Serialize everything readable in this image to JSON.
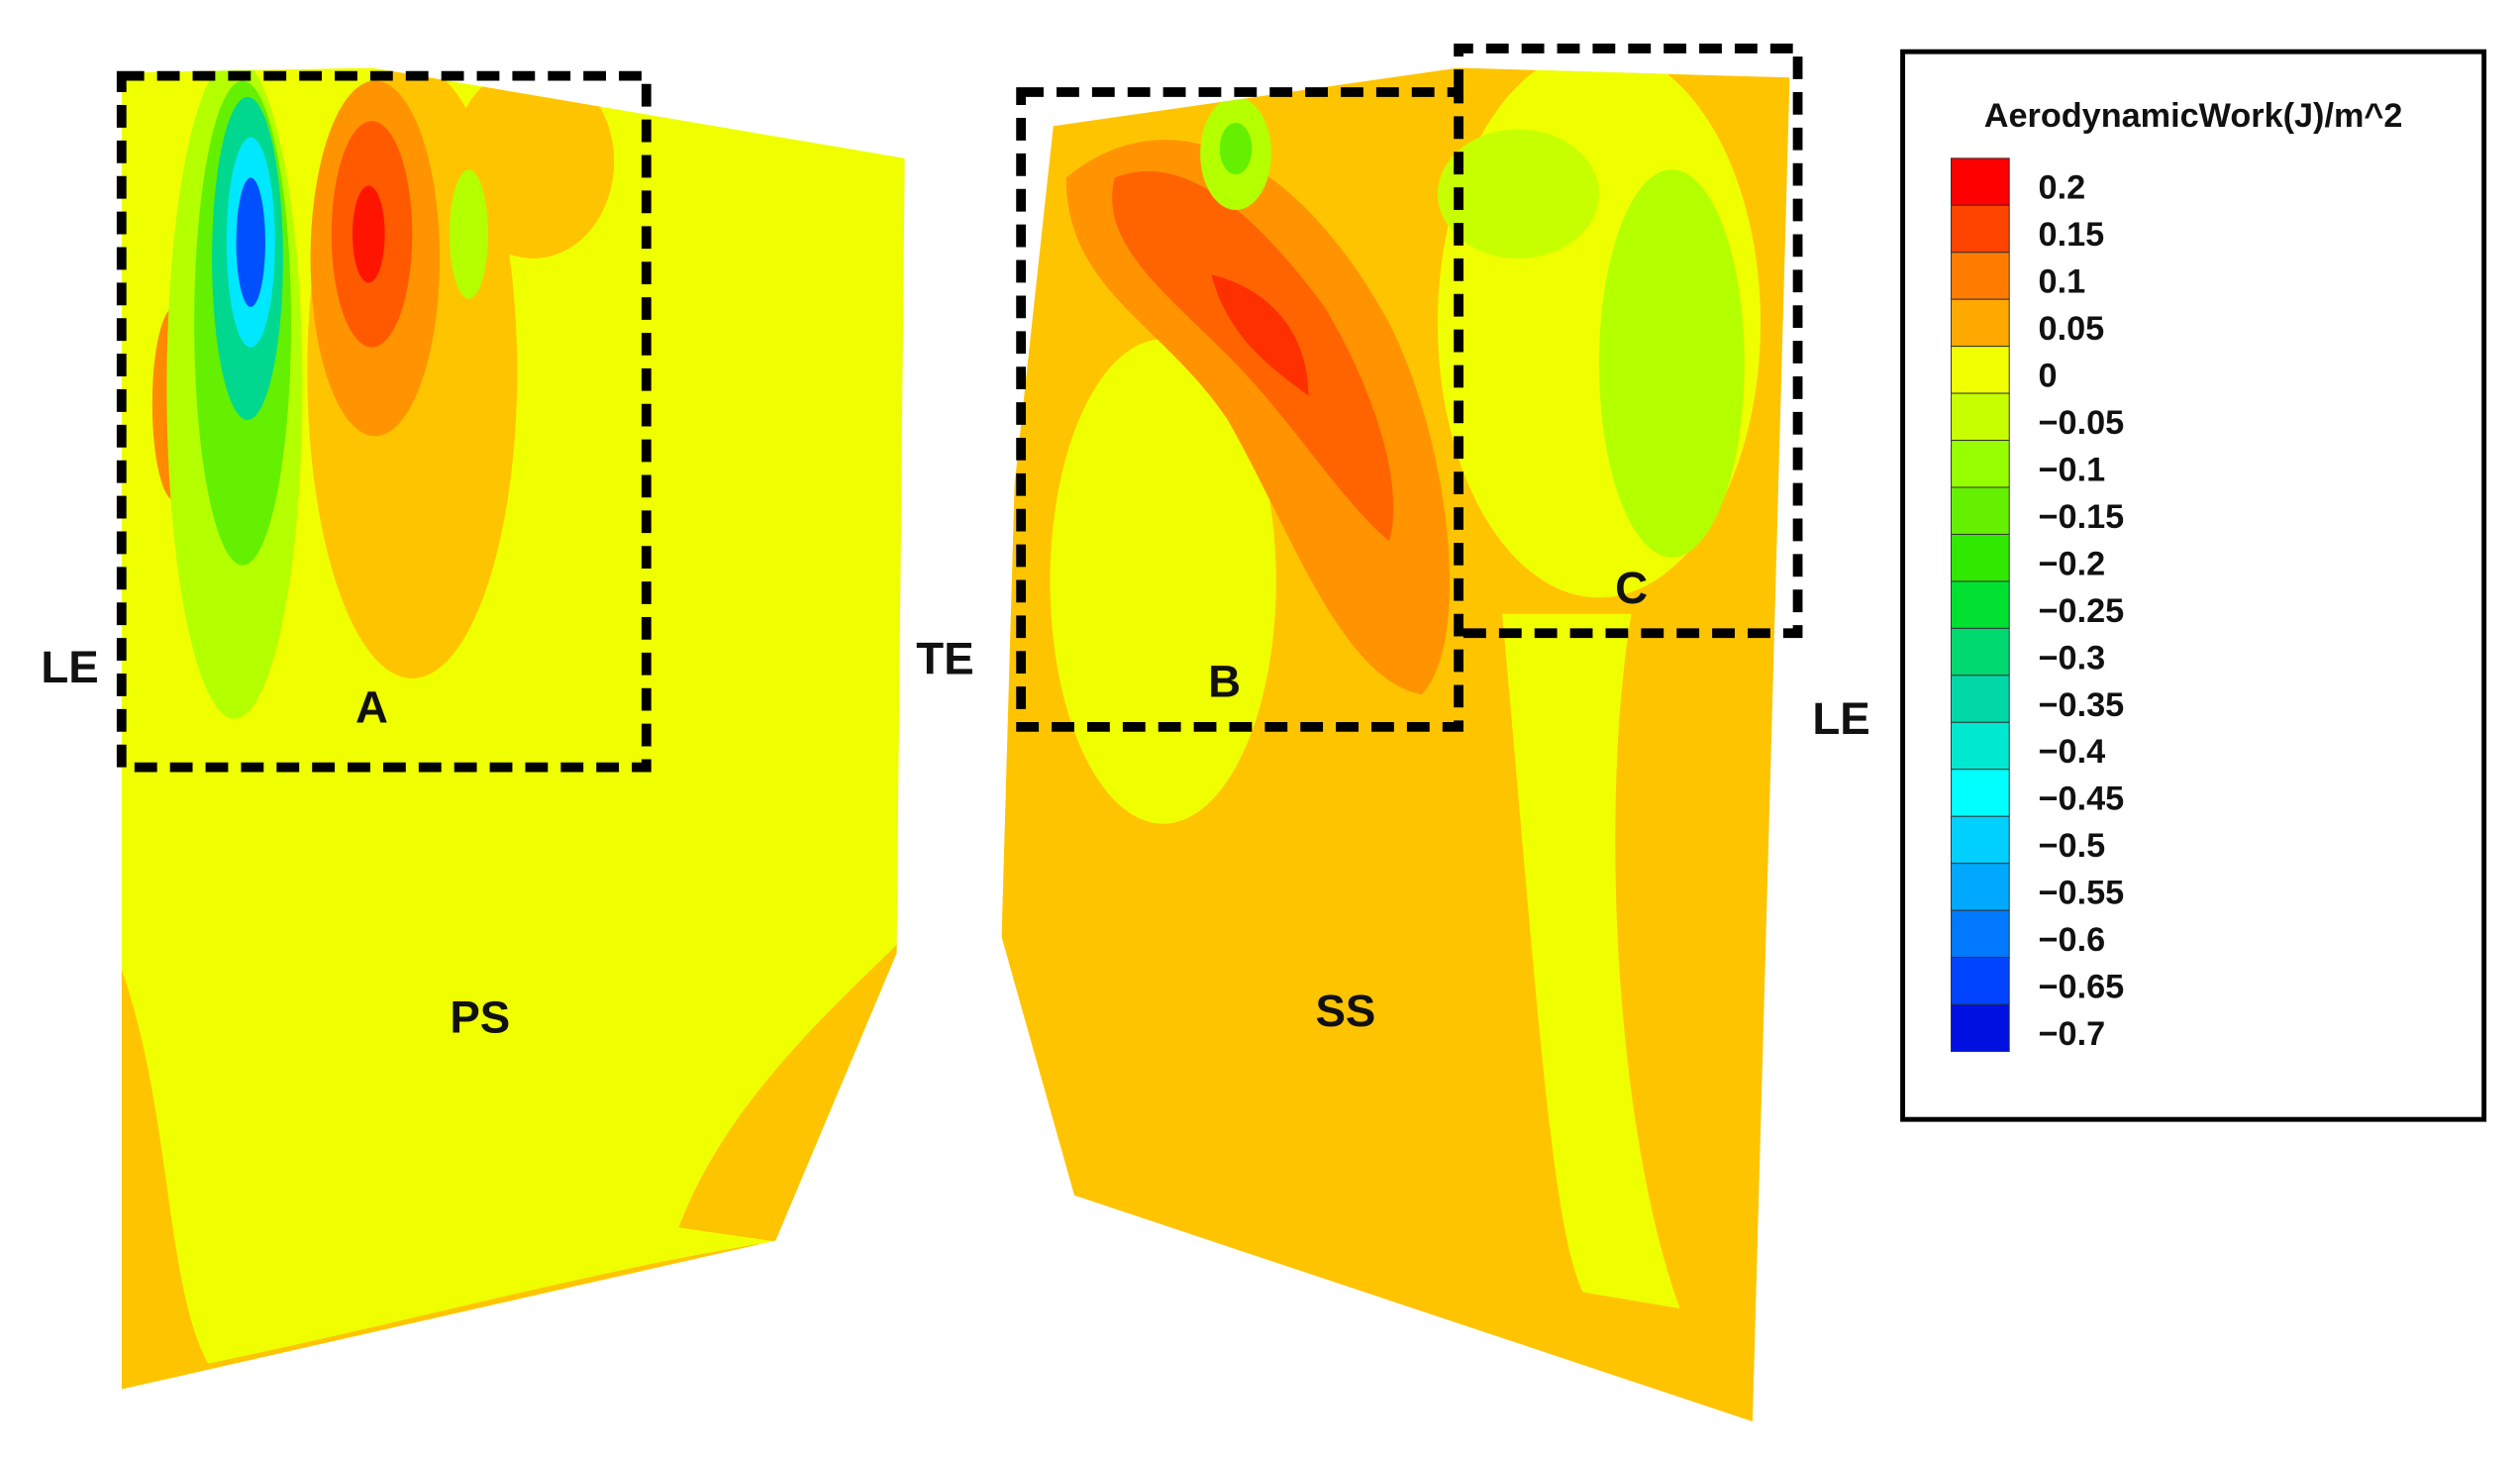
{
  "chart_data": {
    "type": "contour",
    "colorbar": {
      "title": "AerodynamicWork(J)/m^2",
      "ticks": [
        {
          "value": 0.2,
          "label": "0.2"
        },
        {
          "value": 0.15,
          "label": "0.15"
        },
        {
          "value": 0.1,
          "label": "0.1"
        },
        {
          "value": 0.05,
          "label": "0.05"
        },
        {
          "value": 0,
          "label": "0"
        },
        {
          "value": -0.05,
          "label": "−0.05"
        },
        {
          "value": -0.1,
          "label": "−0.1"
        },
        {
          "value": -0.15,
          "label": "−0.15"
        },
        {
          "value": -0.2,
          "label": "−0.2"
        },
        {
          "value": -0.25,
          "label": "−0.25"
        },
        {
          "value": -0.3,
          "label": "−0.3"
        },
        {
          "value": -0.35,
          "label": "−0.35"
        },
        {
          "value": -0.4,
          "label": "−0.4"
        },
        {
          "value": -0.45,
          "label": "−0.45"
        },
        {
          "value": -0.5,
          "label": "−0.5"
        },
        {
          "value": -0.55,
          "label": "−0.55"
        },
        {
          "value": -0.6,
          "label": "−0.6"
        },
        {
          "value": -0.65,
          "label": "−0.65"
        },
        {
          "value": -0.7,
          "label": "−0.7"
        }
      ],
      "colors": [
        "#ff0000",
        "#ff4400",
        "#ff7c00",
        "#ffa800",
        "#f0ff00",
        "#c8ff00",
        "#96ff00",
        "#64f000",
        "#30e800",
        "#00e030",
        "#00d870",
        "#00d8a8",
        "#00e8d0",
        "#00ffff",
        "#00d0ff",
        "#00a8ff",
        "#0078ff",
        "#0044ff",
        "#0010e0"
      ]
    },
    "annotations": [
      "LE",
      "TE",
      "A",
      "PS",
      "B",
      "SS",
      "C",
      "LE"
    ]
  }
}
